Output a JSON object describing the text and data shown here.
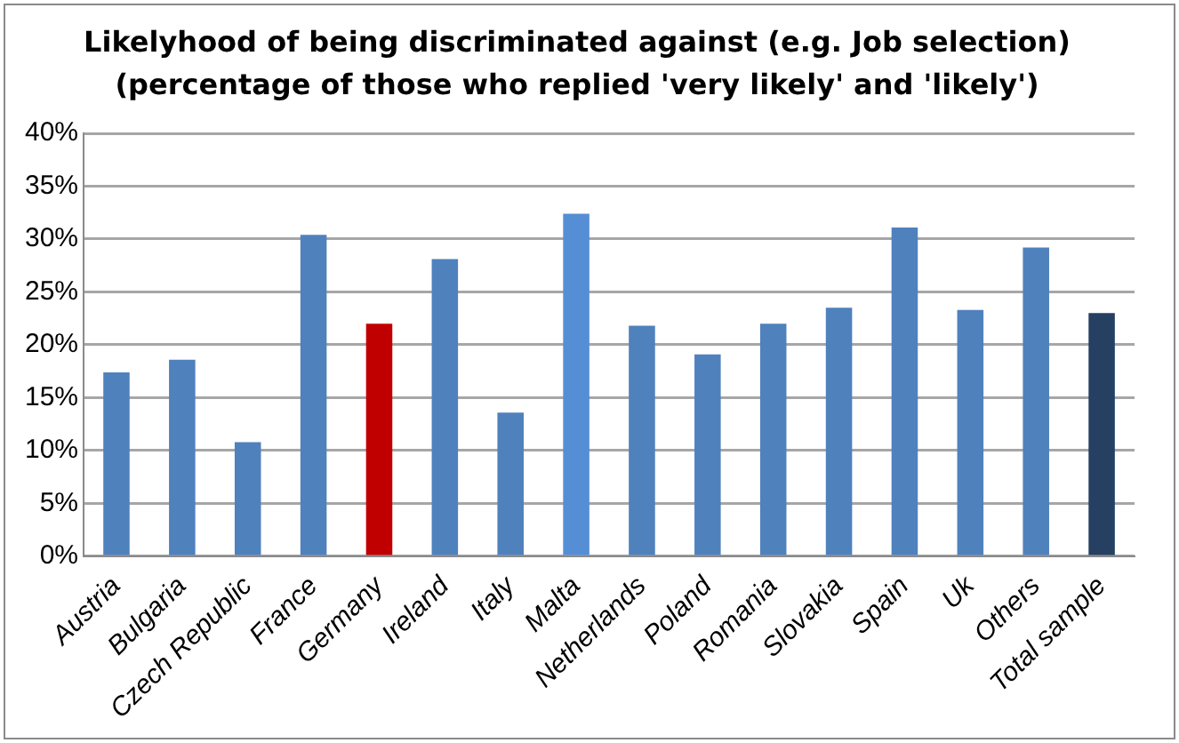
{
  "chart_data": {
    "type": "bar",
    "title": "Likelyhood of being discriminated against (e.g. Job selection)",
    "subtitle": "(percentage of those who replied 'very likely' and 'likely')",
    "categories": [
      "Austria",
      "Bulgaria",
      "Czech Republic",
      "France",
      "Germany",
      "Ireland",
      "Italy",
      "Malta",
      "Netherlands",
      "Poland",
      "Romania",
      "Slovakia",
      "Spain",
      "Uk",
      "Others",
      "Total sample"
    ],
    "values": [
      17.4,
      18.6,
      10.8,
      30.4,
      22.0,
      28.1,
      13.6,
      32.4,
      21.8,
      19.1,
      22.0,
      23.5,
      31.1,
      23.3,
      29.2,
      23.0
    ],
    "colors": [
      "#4f81bd",
      "#4f81bd",
      "#4f81bd",
      "#4f81bd",
      "#c00000",
      "#4f81bd",
      "#4f81bd",
      "#558ed5",
      "#4f81bd",
      "#4f81bd",
      "#4f81bd",
      "#4f81bd",
      "#4f81bd",
      "#4f81bd",
      "#4f81bd",
      "#254061"
    ],
    "ylim": [
      0,
      40
    ],
    "yticks": [
      {
        "value": 0,
        "label": "0%"
      },
      {
        "value": 5,
        "label": "5%"
      },
      {
        "value": 10,
        "label": "10%"
      },
      {
        "value": 15,
        "label": "15%"
      },
      {
        "value": 20,
        "label": "20%"
      },
      {
        "value": 25,
        "label": "25%"
      },
      {
        "value": 30,
        "label": "30%"
      },
      {
        "value": 35,
        "label": "35%"
      },
      {
        "value": 40,
        "label": "40%"
      }
    ],
    "grid": "y",
    "legend": false
  }
}
